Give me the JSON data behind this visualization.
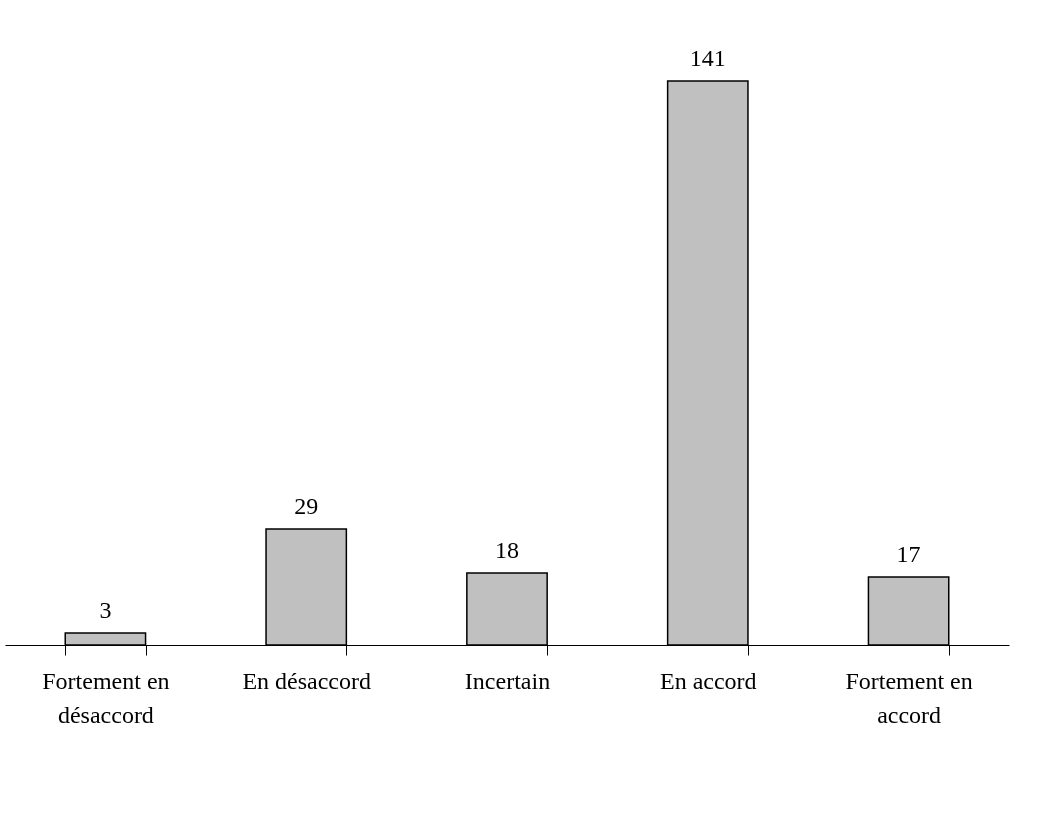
{
  "chart_data": {
    "type": "bar",
    "categories": [
      "Fortement en désaccord",
      "En désaccord",
      "Incertain",
      "En accord",
      "Fortement en accord"
    ],
    "values": [
      3,
      29,
      18,
      141,
      17
    ],
    "color": "#c0c0c0",
    "data_labels": true
  }
}
